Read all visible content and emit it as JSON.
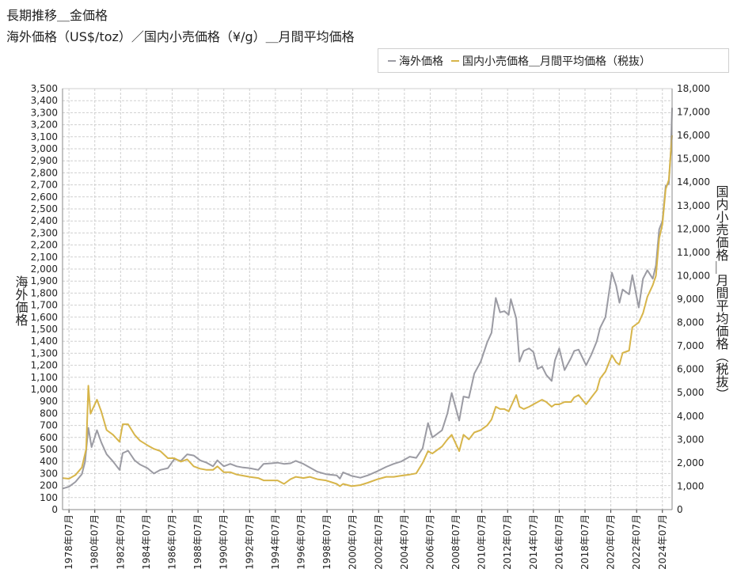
{
  "header": {
    "title_line1": "長期推移＿金価格",
    "title_line2": "海外価格（US$/toz）／国内小売価格（¥/g）＿月間平均価格"
  },
  "legend": {
    "item1": "海外価格",
    "item2": "国内小売価格＿月間平均価格（税抜）"
  },
  "colors": {
    "overseas": "#9b9ba3",
    "domestic": "#d7b54a",
    "grid": "#cfcfcf",
    "axis": "#333333"
  },
  "chart_data": {
    "type": "line",
    "x_start": "1978-01",
    "x_end": "2025-04",
    "x_tick_labels": [
      "1978年07月",
      "1980年07月",
      "1982年07月",
      "1984年07月",
      "1986年07月",
      "1988年07月",
      "1990年07月",
      "1992年07月",
      "1994年07月",
      "1996年07月",
      "1998年07月",
      "2000年07月",
      "2002年07月",
      "2004年07月",
      "2006年07月",
      "2008年07月",
      "2010年07月",
      "2012年07月",
      "2014年07月",
      "2016年07月",
      "2018年07月",
      "2020年07月",
      "2022年07月",
      "2024年07月"
    ],
    "ylabel_left": "海外価格",
    "ylabel_right": "国内小売価格＿月間平均価格（税抜）",
    "ylim_left": [
      0,
      3500
    ],
    "ylim_right": [
      0,
      18000
    ],
    "y_ticks_left": [
      0,
      100,
      200,
      300,
      400,
      500,
      600,
      700,
      800,
      900,
      1000,
      1100,
      1200,
      1300,
      1400,
      1500,
      1600,
      1700,
      1800,
      1900,
      2000,
      2100,
      2200,
      2300,
      2400,
      2500,
      2600,
      2700,
      2800,
      2900,
      3000,
      3100,
      3200,
      3300,
      3400,
      3500
    ],
    "y_ticks_right": [
      0,
      1000,
      2000,
      3000,
      4000,
      5000,
      6000,
      7000,
      8000,
      9000,
      10000,
      11000,
      12000,
      13000,
      14000,
      15000,
      16000,
      17000,
      18000
    ],
    "y_tick_labels_left": [
      "0",
      "100",
      "200",
      "300",
      "400",
      "500",
      "600",
      "700",
      "800",
      "900",
      "1,000",
      "1,100",
      "1,200",
      "1,300",
      "1,400",
      "1,500",
      "1,600",
      "1,700",
      "1,800",
      "1,900",
      "2,000",
      "2,100",
      "2,200",
      "2,300",
      "2,400",
      "2,500",
      "2,600",
      "2,700",
      "2,800",
      "2,900",
      "3,000",
      "3,100",
      "3,200",
      "3,300",
      "3,400",
      "3,500"
    ],
    "y_tick_labels_right": [
      "0",
      "1,000",
      "2,000",
      "3,000",
      "4,000",
      "5,000",
      "6,000",
      "7,000",
      "8,000",
      "9,000",
      "10,000",
      "11,000",
      "12,000",
      "13,000",
      "14,000",
      "15,000",
      "16,000",
      "17,000",
      "18,000"
    ],
    "grid": true,
    "legend_position": "top-right",
    "series": [
      {
        "name": "海外価格",
        "axis": "left",
        "points": [
          [
            "1978-01",
            175
          ],
          [
            "1978-07",
            190
          ],
          [
            "1979-01",
            230
          ],
          [
            "1979-07",
            295
          ],
          [
            "1979-10",
            400
          ],
          [
            "1980-01",
            680
          ],
          [
            "1980-04",
            520
          ],
          [
            "1980-09",
            660
          ],
          [
            "1981-01",
            560
          ],
          [
            "1981-06",
            460
          ],
          [
            "1981-12",
            400
          ],
          [
            "1982-06",
            330
          ],
          [
            "1982-09",
            470
          ],
          [
            "1983-02",
            490
          ],
          [
            "1983-08",
            410
          ],
          [
            "1984-01",
            375
          ],
          [
            "1984-08",
            345
          ],
          [
            "1985-02",
            300
          ],
          [
            "1985-08",
            330
          ],
          [
            "1986-03",
            345
          ],
          [
            "1986-09",
            420
          ],
          [
            "1987-03",
            405
          ],
          [
            "1987-09",
            460
          ],
          [
            "1988-03",
            450
          ],
          [
            "1988-09",
            410
          ],
          [
            "1989-03",
            390
          ],
          [
            "1989-09",
            360
          ],
          [
            "1990-01",
            410
          ],
          [
            "1990-07",
            360
          ],
          [
            "1991-01",
            380
          ],
          [
            "1991-07",
            360
          ],
          [
            "1992-01",
            350
          ],
          [
            "1992-07",
            345
          ],
          [
            "1993-03",
            330
          ],
          [
            "1993-08",
            380
          ],
          [
            "1994-03",
            385
          ],
          [
            "1994-09",
            390
          ],
          [
            "1995-03",
            380
          ],
          [
            "1995-09",
            385
          ],
          [
            "1996-02",
            405
          ],
          [
            "1996-09",
            380
          ],
          [
            "1997-03",
            350
          ],
          [
            "1997-10",
            315
          ],
          [
            "1998-06",
            295
          ],
          [
            "1999-04",
            285
          ],
          [
            "1999-07",
            258
          ],
          [
            "1999-10",
            310
          ],
          [
            "2000-06",
            280
          ],
          [
            "2001-02",
            265
          ],
          [
            "2001-09",
            285
          ],
          [
            "2002-06",
            320
          ],
          [
            "2003-02",
            355
          ],
          [
            "2003-09",
            380
          ],
          [
            "2004-04",
            400
          ],
          [
            "2004-12",
            440
          ],
          [
            "2005-06",
            430
          ],
          [
            "2005-12",
            510
          ],
          [
            "2006-05",
            720
          ],
          [
            "2006-09",
            600
          ],
          [
            "2007-06",
            660
          ],
          [
            "2007-11",
            800
          ],
          [
            "2008-03",
            970
          ],
          [
            "2008-10",
            740
          ],
          [
            "2009-02",
            940
          ],
          [
            "2009-07",
            930
          ],
          [
            "2009-12",
            1130
          ],
          [
            "2010-06",
            1230
          ],
          [
            "2010-12",
            1390
          ],
          [
            "2011-04",
            1470
          ],
          [
            "2011-08",
            1760
          ],
          [
            "2011-12",
            1640
          ],
          [
            "2012-04",
            1650
          ],
          [
            "2012-08",
            1620
          ],
          [
            "2012-10",
            1750
          ],
          [
            "2013-03",
            1590
          ],
          [
            "2013-06",
            1230
          ],
          [
            "2013-10",
            1320
          ],
          [
            "2014-03",
            1340
          ],
          [
            "2014-07",
            1310
          ],
          [
            "2014-11",
            1170
          ],
          [
            "2015-03",
            1190
          ],
          [
            "2015-07",
            1120
          ],
          [
            "2015-12",
            1070
          ],
          [
            "2016-03",
            1240
          ],
          [
            "2016-07",
            1340
          ],
          [
            "2016-12",
            1160
          ],
          [
            "2017-06",
            1260
          ],
          [
            "2017-09",
            1320
          ],
          [
            "2018-01",
            1330
          ],
          [
            "2018-08",
            1200
          ],
          [
            "2019-01",
            1290
          ],
          [
            "2019-06",
            1400
          ],
          [
            "2019-09",
            1510
          ],
          [
            "2020-02",
            1600
          ],
          [
            "2020-08",
            1970
          ],
          [
            "2020-12",
            1860
          ],
          [
            "2021-03",
            1720
          ],
          [
            "2021-06",
            1830
          ],
          [
            "2021-12",
            1790
          ],
          [
            "2022-03",
            1950
          ],
          [
            "2022-09",
            1680
          ],
          [
            "2023-01",
            1920
          ],
          [
            "2023-05",
            1990
          ],
          [
            "2023-10",
            1920
          ],
          [
            "2024-01",
            2030
          ],
          [
            "2024-04",
            2330
          ],
          [
            "2024-07",
            2400
          ],
          [
            "2024-10",
            2690
          ],
          [
            "2025-01",
            2710
          ],
          [
            "2025-03",
            3000
          ],
          [
            "2025-04",
            3340
          ]
        ]
      },
      {
        "name": "国内小売価格＿月間平均価格（税抜）",
        "axis": "right",
        "points": [
          [
            "1978-01",
            1350
          ],
          [
            "1978-07",
            1320
          ],
          [
            "1979-01",
            1480
          ],
          [
            "1979-07",
            1800
          ],
          [
            "1979-11",
            2600
          ],
          [
            "1980-01",
            5300
          ],
          [
            "1980-03",
            4100
          ],
          [
            "1980-09",
            4700
          ],
          [
            "1981-01",
            4200
          ],
          [
            "1981-06",
            3400
          ],
          [
            "1981-12",
            3200
          ],
          [
            "1982-06",
            2900
          ],
          [
            "1982-09",
            3650
          ],
          [
            "1983-02",
            3650
          ],
          [
            "1983-08",
            3200
          ],
          [
            "1984-01",
            2950
          ],
          [
            "1984-08",
            2750
          ],
          [
            "1985-02",
            2600
          ],
          [
            "1985-08",
            2500
          ],
          [
            "1986-03",
            2200
          ],
          [
            "1986-09",
            2200
          ],
          [
            "1987-03",
            2050
          ],
          [
            "1987-09",
            2150
          ],
          [
            "1988-03",
            1850
          ],
          [
            "1988-09",
            1750
          ],
          [
            "1989-03",
            1700
          ],
          [
            "1989-09",
            1700
          ],
          [
            "1990-01",
            1850
          ],
          [
            "1990-07",
            1600
          ],
          [
            "1991-01",
            1600
          ],
          [
            "1991-07",
            1500
          ],
          [
            "1992-01",
            1450
          ],
          [
            "1992-07",
            1400
          ],
          [
            "1993-03",
            1350
          ],
          [
            "1993-08",
            1250
          ],
          [
            "1994-03",
            1250
          ],
          [
            "1994-09",
            1250
          ],
          [
            "1995-03",
            1100
          ],
          [
            "1995-09",
            1300
          ],
          [
            "1996-02",
            1400
          ],
          [
            "1996-09",
            1350
          ],
          [
            "1997-03",
            1400
          ],
          [
            "1997-10",
            1300
          ],
          [
            "1998-06",
            1250
          ],
          [
            "1999-04",
            1100
          ],
          [
            "1999-07",
            1000
          ],
          [
            "1999-10",
            1100
          ],
          [
            "2000-06",
            1000
          ],
          [
            "2001-02",
            1050
          ],
          [
            "2001-09",
            1150
          ],
          [
            "2002-06",
            1300
          ],
          [
            "2003-02",
            1400
          ],
          [
            "2003-09",
            1400
          ],
          [
            "2004-04",
            1450
          ],
          [
            "2004-12",
            1500
          ],
          [
            "2005-06",
            1550
          ],
          [
            "2005-12",
            2000
          ],
          [
            "2006-05",
            2500
          ],
          [
            "2006-09",
            2400
          ],
          [
            "2007-06",
            2700
          ],
          [
            "2007-11",
            3000
          ],
          [
            "2008-03",
            3200
          ],
          [
            "2008-10",
            2500
          ],
          [
            "2009-02",
            3200
          ],
          [
            "2009-07",
            3000
          ],
          [
            "2009-12",
            3300
          ],
          [
            "2010-06",
            3400
          ],
          [
            "2010-12",
            3600
          ],
          [
            "2011-04",
            3850
          ],
          [
            "2011-08",
            4400
          ],
          [
            "2011-12",
            4300
          ],
          [
            "2012-04",
            4300
          ],
          [
            "2012-08",
            4200
          ],
          [
            "2012-10",
            4400
          ],
          [
            "2013-03",
            4900
          ],
          [
            "2013-06",
            4400
          ],
          [
            "2013-10",
            4300
          ],
          [
            "2014-03",
            4400
          ],
          [
            "2014-07",
            4500
          ],
          [
            "2014-11",
            4600
          ],
          [
            "2015-03",
            4700
          ],
          [
            "2015-07",
            4600
          ],
          [
            "2015-12",
            4400
          ],
          [
            "2016-03",
            4500
          ],
          [
            "2016-07",
            4500
          ],
          [
            "2016-12",
            4600
          ],
          [
            "2017-06",
            4600
          ],
          [
            "2017-09",
            4800
          ],
          [
            "2018-01",
            4900
          ],
          [
            "2018-08",
            4500
          ],
          [
            "2019-01",
            4800
          ],
          [
            "2019-06",
            5100
          ],
          [
            "2019-09",
            5600
          ],
          [
            "2020-02",
            5900
          ],
          [
            "2020-08",
            6600
          ],
          [
            "2020-12",
            6300
          ],
          [
            "2021-03",
            6200
          ],
          [
            "2021-06",
            6700
          ],
          [
            "2021-12",
            6800
          ],
          [
            "2022-03",
            7800
          ],
          [
            "2022-09",
            8000
          ],
          [
            "2023-01",
            8400
          ],
          [
            "2023-05",
            9100
          ],
          [
            "2023-10",
            9600
          ],
          [
            "2024-01",
            10000
          ],
          [
            "2024-04",
            11600
          ],
          [
            "2024-07",
            12200
          ],
          [
            "2024-10",
            13700
          ],
          [
            "2025-01",
            14100
          ],
          [
            "2025-03",
            15400
          ],
          [
            "2025-04",
            16000
          ]
        ]
      }
    ]
  }
}
